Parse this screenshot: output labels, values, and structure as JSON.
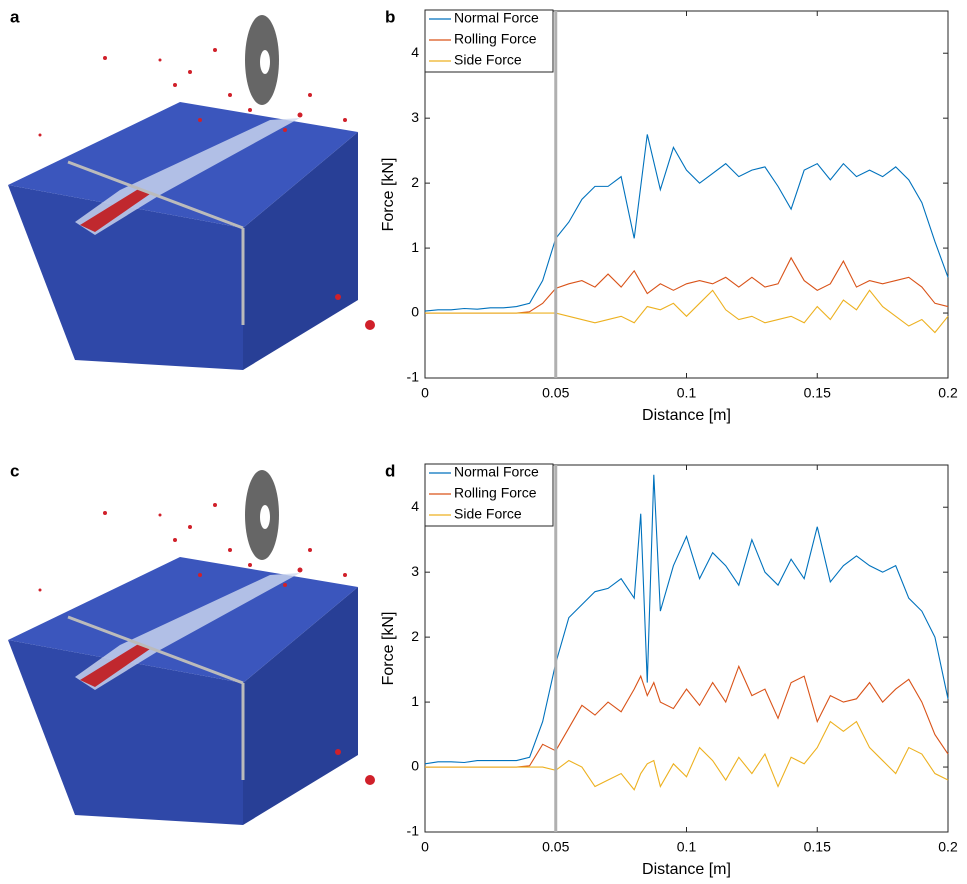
{
  "panel_labels": [
    "a",
    "b",
    "c",
    "d"
  ],
  "chart_data": [
    {
      "type": "line",
      "xlabel": "Distance [m]",
      "ylabel": "Force [kN]",
      "xlim": [
        0,
        0.2
      ],
      "ylim": [
        -1,
        4.65
      ],
      "xticks": [
        0,
        0.05,
        0.1,
        0.15,
        0.2
      ],
      "yticks": [
        -1,
        0,
        1,
        2,
        3,
        4
      ],
      "marker_x": 0.05,
      "legend": "upper-left",
      "x": [
        0,
        0.005,
        0.01,
        0.015,
        0.02,
        0.025,
        0.03,
        0.035,
        0.04,
        0.045,
        0.05,
        0.055,
        0.06,
        0.065,
        0.07,
        0.075,
        0.08,
        0.085,
        0.09,
        0.095,
        0.1,
        0.105,
        0.11,
        0.115,
        0.12,
        0.125,
        0.13,
        0.135,
        0.14,
        0.145,
        0.15,
        0.155,
        0.16,
        0.165,
        0.17,
        0.175,
        0.18,
        0.185,
        0.19,
        0.195,
        0.2
      ],
      "series": [
        {
          "name": "Normal Force",
          "color": "#0072bd",
          "values": [
            0.03,
            0.05,
            0.05,
            0.07,
            0.06,
            0.08,
            0.08,
            0.1,
            0.15,
            0.5,
            1.15,
            1.4,
            1.75,
            1.95,
            1.95,
            2.1,
            1.15,
            2.75,
            1.9,
            2.55,
            2.2,
            2.0,
            2.15,
            2.3,
            2.1,
            2.2,
            2.25,
            1.95,
            1.6,
            2.2,
            2.3,
            2.05,
            2.3,
            2.1,
            2.2,
            2.1,
            2.25,
            2.05,
            1.7,
            1.1,
            0.55
          ]
        },
        {
          "name": "Rolling Force",
          "color": "#d95319",
          "values": [
            0,
            0,
            0,
            0,
            0,
            0,
            0,
            0,
            0.02,
            0.15,
            0.38,
            0.45,
            0.5,
            0.4,
            0.6,
            0.4,
            0.65,
            0.3,
            0.45,
            0.35,
            0.45,
            0.5,
            0.45,
            0.55,
            0.4,
            0.55,
            0.4,
            0.45,
            0.85,
            0.5,
            0.35,
            0.45,
            0.8,
            0.4,
            0.5,
            0.45,
            0.5,
            0.55,
            0.4,
            0.15,
            0.1
          ]
        },
        {
          "name": "Side Force",
          "color": "#edb120",
          "values": [
            0,
            0,
            0,
            0,
            0,
            0,
            0,
            0,
            0,
            0,
            0,
            -0.05,
            -0.1,
            -0.15,
            -0.1,
            -0.05,
            -0.15,
            0.1,
            0.05,
            0.15,
            -0.05,
            0.15,
            0.35,
            0.05,
            -0.1,
            -0.05,
            -0.15,
            -0.1,
            -0.05,
            -0.15,
            0.1,
            -0.1,
            0.2,
            0.05,
            0.35,
            0.1,
            -0.05,
            -0.2,
            -0.1,
            -0.3,
            -0.05
          ]
        }
      ]
    },
    {
      "type": "line",
      "xlabel": "Distance [m]",
      "ylabel": "Force [kN]",
      "xlim": [
        0,
        0.2
      ],
      "ylim": [
        -1,
        4.65
      ],
      "xticks": [
        0,
        0.05,
        0.1,
        0.15,
        0.2
      ],
      "yticks": [
        -1,
        0,
        1,
        2,
        3,
        4
      ],
      "marker_x": 0.05,
      "legend": "upper-left",
      "x": [
        0,
        0.005,
        0.01,
        0.015,
        0.02,
        0.025,
        0.03,
        0.035,
        0.04,
        0.045,
        0.05,
        0.055,
        0.06,
        0.065,
        0.07,
        0.075,
        0.08,
        0.0825,
        0.085,
        0.0875,
        0.09,
        0.095,
        0.1,
        0.105,
        0.11,
        0.115,
        0.12,
        0.125,
        0.13,
        0.135,
        0.14,
        0.145,
        0.15,
        0.155,
        0.16,
        0.165,
        0.17,
        0.175,
        0.18,
        0.185,
        0.19,
        0.195,
        0.2
      ],
      "series": [
        {
          "name": "Normal Force",
          "color": "#0072bd",
          "values": [
            0.05,
            0.08,
            0.08,
            0.07,
            0.1,
            0.1,
            0.1,
            0.1,
            0.15,
            0.7,
            1.6,
            2.3,
            2.5,
            2.7,
            2.75,
            2.9,
            2.6,
            3.9,
            1.3,
            4.5,
            2.4,
            3.1,
            3.55,
            2.9,
            3.3,
            3.1,
            2.8,
            3.5,
            3.0,
            2.8,
            3.2,
            2.9,
            3.7,
            2.85,
            3.1,
            3.25,
            3.1,
            3.0,
            3.1,
            2.6,
            2.4,
            2.0,
            1.05
          ]
        },
        {
          "name": "Rolling Force",
          "color": "#d95319",
          "values": [
            0,
            0,
            0,
            0,
            0,
            0,
            0,
            0,
            0.02,
            0.35,
            0.25,
            0.6,
            0.95,
            0.8,
            1.0,
            0.85,
            1.2,
            1.4,
            1.1,
            1.3,
            1.0,
            0.9,
            1.2,
            0.95,
            1.3,
            1.0,
            1.55,
            1.1,
            1.2,
            0.75,
            1.3,
            1.4,
            0.7,
            1.1,
            1.0,
            1.05,
            1.3,
            1.0,
            1.2,
            1.35,
            1.0,
            0.5,
            0.2
          ]
        },
        {
          "name": "Side Force",
          "color": "#edb120",
          "values": [
            0,
            0,
            0,
            0,
            0,
            0,
            0,
            0,
            0,
            0,
            -0.05,
            0.1,
            0,
            -0.3,
            -0.2,
            -0.1,
            -0.35,
            -0.1,
            0.05,
            0.1,
            -0.3,
            0.05,
            -0.15,
            0.3,
            0.1,
            -0.2,
            0.15,
            -0.1,
            0.2,
            -0.3,
            0.15,
            0.05,
            0.3,
            0.7,
            0.55,
            0.7,
            0.3,
            0.1,
            -0.1,
            0.3,
            0.2,
            -0.1,
            -0.2
          ]
        }
      ]
    }
  ]
}
